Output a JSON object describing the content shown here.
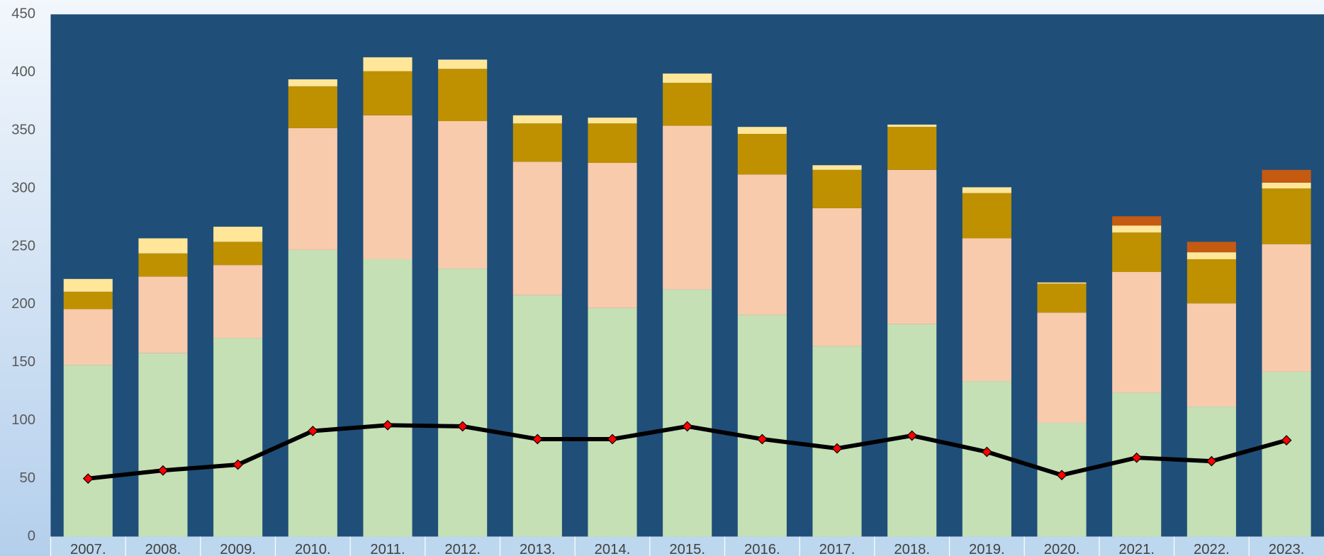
{
  "chart_data": {
    "type": "bar",
    "categories": [
      "2007.",
      "2008.",
      "2009.",
      "2010.",
      "2011.",
      "2012.",
      "2013.",
      "2014.",
      "2015.",
      "2016.",
      "2017.",
      "2018.",
      "2019.",
      "2020.",
      "2021.",
      "2022.",
      "2023."
    ],
    "stacked": true,
    "series": [
      {
        "color": "#c5e0b4",
        "values": [
          148,
          158,
          171,
          247,
          239,
          231,
          208,
          197,
          213,
          191,
          164,
          183,
          134,
          98,
          124,
          112,
          142
        ]
      },
      {
        "color": "#f8cbad",
        "values": [
          48,
          66,
          63,
          105,
          124,
          127,
          115,
          125,
          141,
          121,
          119,
          133,
          123,
          95,
          104,
          89,
          110
        ]
      },
      {
        "color": "#bf9000",
        "values": [
          15,
          20,
          20,
          36,
          38,
          45,
          33,
          34,
          37,
          35,
          33,
          37,
          39,
          25,
          34,
          38,
          48
        ]
      },
      {
        "color": "#ffe699",
        "values": [
          11,
          13,
          13,
          6,
          12,
          8,
          7,
          5,
          8,
          6,
          4,
          2,
          5,
          1,
          6,
          6,
          5
        ]
      },
      {
        "color": "#c55a11",
        "values": [
          null,
          null,
          null,
          null,
          null,
          null,
          null,
          null,
          null,
          null,
          null,
          null,
          null,
          null,
          8,
          9,
          11
        ]
      },
      {
        "type": "line",
        "color": "#000000",
        "marker_color": "#ff0000",
        "values": [
          50,
          57,
          62,
          91,
          96,
          95,
          84,
          84,
          95,
          84,
          76,
          87,
          73,
          53,
          68,
          65,
          83
        ]
      }
    ],
    "ylim": [
      0,
      450
    ],
    "yticks": [
      0,
      50,
      100,
      150,
      200,
      250,
      300,
      350,
      400,
      450
    ]
  }
}
